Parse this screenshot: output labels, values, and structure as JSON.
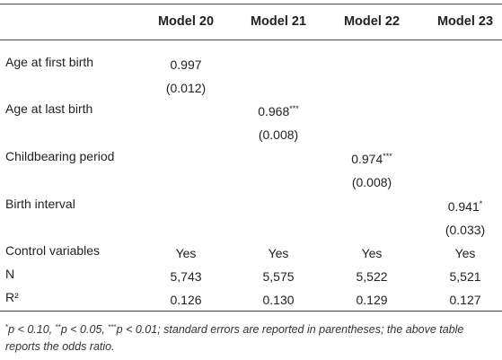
{
  "table": {
    "columns": [
      "Model 20",
      "Model 21",
      "Model 22",
      "Model 23"
    ],
    "rows": [
      {
        "label": "Age at first birth",
        "coef": [
          "0.997",
          "",
          "",
          ""
        ],
        "stars": [
          "",
          "",
          "",
          ""
        ]
      },
      {
        "label": "",
        "coef": [
          "(0.012)",
          "",
          "",
          ""
        ],
        "stars": [
          "",
          "",
          "",
          ""
        ]
      },
      {
        "label": "Age at last birth",
        "coef": [
          "",
          "0.968",
          "",
          ""
        ],
        "stars": [
          "",
          "***",
          "",
          ""
        ]
      },
      {
        "label": "",
        "coef": [
          "",
          "(0.008)",
          "",
          ""
        ],
        "stars": [
          "",
          "",
          "",
          ""
        ]
      },
      {
        "label": "Childbearing period",
        "coef": [
          "",
          "",
          "0.974",
          ""
        ],
        "stars": [
          "",
          "",
          "***",
          ""
        ]
      },
      {
        "label": "",
        "coef": [
          "",
          "",
          "(0.008)",
          ""
        ],
        "stars": [
          "",
          "",
          "",
          ""
        ]
      },
      {
        "label": "Birth interval",
        "coef": [
          "",
          "",
          "",
          "0.941"
        ],
        "stars": [
          "",
          "",
          "",
          "*"
        ]
      },
      {
        "label": "",
        "coef": [
          "",
          "",
          "",
          "(0.033)"
        ],
        "stars": [
          "",
          "",
          "",
          ""
        ]
      },
      {
        "label": "Control variables",
        "coef": [
          "Yes",
          "Yes",
          "Yes",
          "Yes"
        ],
        "stars": [
          "",
          "",
          "",
          ""
        ]
      },
      {
        "label": "N",
        "coef": [
          "5,743",
          "5,575",
          "5,522",
          "5,521"
        ],
        "stars": [
          "",
          "",
          "",
          ""
        ]
      },
      {
        "label": "R²",
        "coef": [
          "0.126",
          "0.130",
          "0.129",
          "0.127"
        ],
        "stars": [
          "",
          "",
          "",
          ""
        ]
      }
    ]
  },
  "note": {
    "s1": "*",
    "t1": "p < 0.10, ",
    "s2": "**",
    "t2": "p < 0.05, ",
    "s3": "***",
    "t3": "p < 0.01; standard errors are reported in parentheses; the above table reports the odds ratio."
  }
}
